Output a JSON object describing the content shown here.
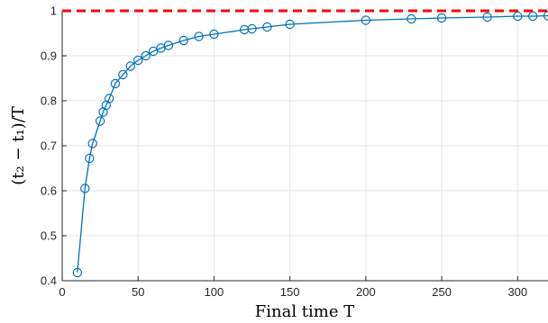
{
  "chart_data": {
    "type": "line",
    "title": "",
    "xlabel": "Final time T",
    "ylabel": "(t₂ − t₁)/T",
    "xlim": [
      0,
      320
    ],
    "ylim": [
      0.4,
      1.0
    ],
    "xticks": [
      "0",
      "50",
      "100",
      "150",
      "200",
      "250",
      "300"
    ],
    "yticks": [
      "0.4",
      "0.5",
      "0.6",
      "0.7",
      "0.8",
      "0.9",
      "1"
    ],
    "grid": true,
    "series": [
      {
        "color": "#0072BD",
        "marker": "circle-open",
        "x": [
          10,
          15,
          18,
          20,
          25,
          27,
          29,
          31,
          35,
          40,
          45,
          50,
          55,
          60,
          65,
          70,
          80,
          90,
          100,
          120,
          125,
          135,
          150,
          200,
          230,
          250,
          280,
          300,
          310,
          320
        ],
        "y": [
          0.418,
          0.605,
          0.672,
          0.705,
          0.755,
          0.775,
          0.79,
          0.805,
          0.838,
          0.858,
          0.877,
          0.89,
          0.9,
          0.91,
          0.917,
          0.923,
          0.934,
          0.943,
          0.948,
          0.958,
          0.96,
          0.964,
          0.97,
          0.979,
          0.982,
          0.984,
          0.986,
          0.988,
          0.988,
          0.989
        ]
      },
      {
        "color": "#FF0000",
        "style": "dashed",
        "x": [
          0,
          320
        ],
        "y": [
          1.0,
          1.0
        ]
      }
    ]
  }
}
